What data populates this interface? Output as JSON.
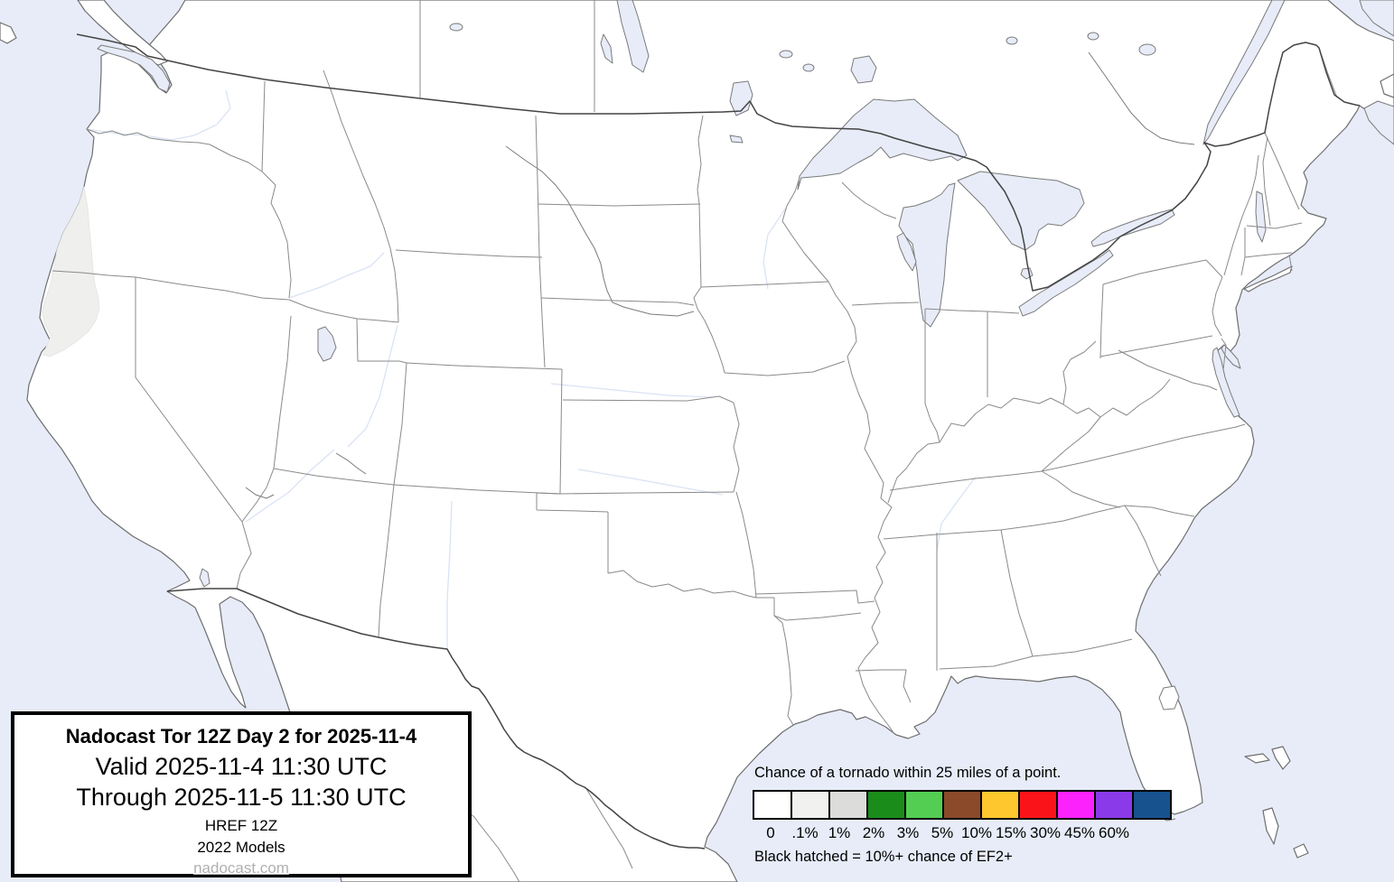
{
  "title_box": {
    "forecast_title": "Nadocast Tor 12Z Day 2 for 2025-11-4",
    "valid_line": "Valid 2025-11-4 11:30 UTC",
    "through_line": "Through 2025-11-5 11:30 UTC",
    "model_line": "HREF 12Z",
    "models_line": "2022 Models",
    "link": "nadocast.com"
  },
  "legend": {
    "title": "Chance of a tornado within 25 miles of a point.",
    "note": "Black hatched = 10%+ chance of EF2+",
    "bins": [
      {
        "label": "0",
        "color": "#ffffff"
      },
      {
        "label": ".1%",
        "color": "#f1f1ef"
      },
      {
        "label": "1%",
        "color": "#dcdcda"
      },
      {
        "label": "2%",
        "color": "#1a8c1a"
      },
      {
        "label": "3%",
        "color": "#53ce53"
      },
      {
        "label": "5%",
        "color": "#8b4a2a"
      },
      {
        "label": "10%",
        "color": "#ffc72e"
      },
      {
        "label": "15%",
        "color": "#fa141a"
      },
      {
        "label": "30%",
        "color": "#fb22fb"
      },
      {
        "label": "45%",
        "color": "#8a3ae8"
      },
      {
        "label": "60%",
        "color": "#17528e"
      }
    ]
  },
  "map": {
    "colors": {
      "ocean": "#e7ecf8",
      "land": "#ffffff",
      "coastline": "#6e6e6e",
      "state_border": "#8a8a8a",
      "international_border": "#444444",
      "river": "#d9e3f4"
    },
    "forecast_regions": [
      {
        "probability": ".1%",
        "color": "#efefed",
        "location": "coastal southwest Oregon and northwest California"
      }
    ]
  }
}
